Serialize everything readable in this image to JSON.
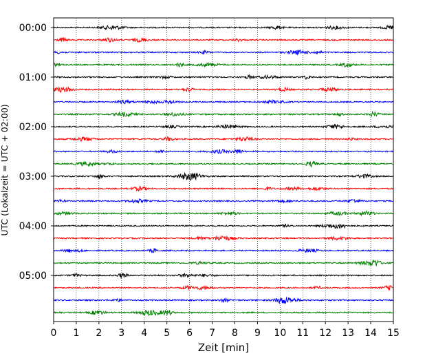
{
  "chart_data": {
    "type": "line",
    "title": "",
    "xlabel": "Zeit  [min]",
    "ylabel": "UTC (Lokalzeit = UTC + 02:00)",
    "xlim": [
      0,
      15
    ],
    "x_ticks": [
      "0",
      "1",
      "2",
      "3",
      "4",
      "5",
      "6",
      "7",
      "8",
      "9",
      "10",
      "11",
      "12",
      "13",
      "14",
      "15"
    ],
    "y_ticks": [
      "00:00",
      "01:00",
      "02:00",
      "03:00",
      "04:00",
      "05:00"
    ],
    "traces_per_hour": 4,
    "minutes_per_trace": 15,
    "trace_count": 24,
    "grid": "vertical dotted at every minute",
    "colors": [
      "#000000",
      "#ff0000",
      "#0000ff",
      "#008000"
    ]
  }
}
